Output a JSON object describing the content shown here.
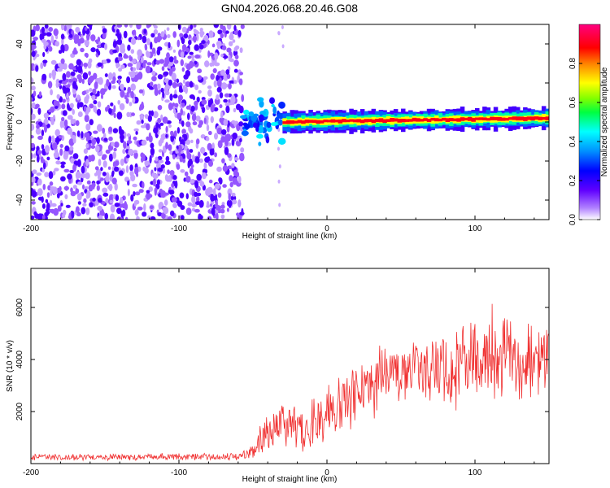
{
  "figure_title": "GN04.2026.068.20.46.G08",
  "chart_data": [
    {
      "type": "heatmap",
      "title": "GN04.2026.068.20.46.G08",
      "xlabel": "Height of straight line (km)",
      "ylabel": "Frequency (Hz)",
      "xlim": [
        -200,
        150
      ],
      "ylim": [
        -50,
        50
      ],
      "x_ticks": [
        -200,
        -100,
        0,
        100
      ],
      "y_ticks": [
        -40,
        -20,
        0,
        20,
        40
      ],
      "x_tick_labels": [
        "-200",
        "-100",
        "0",
        "100"
      ],
      "y_tick_labels": [
        "-40",
        "-20",
        "0",
        "20",
        "40"
      ],
      "colorbar": {
        "label": "Normalized spectral amplitude",
        "range": [
          0,
          1
        ],
        "ticks": [
          0,
          0.2,
          0.4,
          0.6,
          0.8
        ],
        "tick_labels": [
          "0.0",
          "0.2",
          "0.4",
          "0.6",
          "0.8"
        ],
        "colormap": "rainbow (purple-blue-cyan-green-yellow-red-magenta)"
      },
      "regions": [
        {
          "name": "noise",
          "x_range": [
            -200,
            -57
          ],
          "freq_range": [
            -50,
            50
          ],
          "amplitude": 0.15
        },
        {
          "name": "track_onset",
          "x_range": [
            -57,
            -30
          ],
          "freq_center": 0,
          "amplitude": 0.4
        },
        {
          "name": "tone_track",
          "x_range": [
            -30,
            150
          ],
          "freq_center": 0,
          "freq_end": 2,
          "amplitude": 0.95
        }
      ],
      "grid": false
    },
    {
      "type": "line",
      "xlabel": "Height of straight line (km)",
      "ylabel": "SNR (10 * v/v)",
      "xlim": [
        -200,
        150
      ],
      "ylim": [
        0,
        7500
      ],
      "x_ticks": [
        -200,
        -100,
        0,
        100
      ],
      "y_ticks": [
        2000,
        4000,
        6000
      ],
      "x_tick_labels": [
        "-200",
        "-100",
        "0",
        "100"
      ],
      "y_tick_labels": [
        "2000",
        "4000",
        "6000"
      ],
      "color": "#f03030",
      "series": [
        {
          "name": "SNR",
          "x": [
            -200,
            -150,
            -100,
            -60,
            -50,
            -40,
            -30,
            -20,
            -10,
            0,
            10,
            20,
            30,
            40,
            50,
            60,
            70,
            80,
            90,
            100,
            110,
            120,
            130,
            140,
            150
          ],
          "mean": [
            250,
            250,
            260,
            270,
            450,
            1200,
            1700,
            1350,
            1500,
            1900,
            2300,
            2700,
            3000,
            3250,
            3400,
            3500,
            3500,
            3600,
            3700,
            4000,
            4100,
            4200,
            4000,
            4100,
            4000
          ],
          "spread": [
            120,
            120,
            120,
            130,
            300,
            800,
            900,
            900,
            1000,
            1000,
            1100,
            1100,
            1200,
            1300,
            1300,
            1300,
            1300,
            1400,
            1500,
            1700,
            1700,
            1800,
            1700,
            1600,
            1500
          ]
        }
      ],
      "grid": false
    }
  ]
}
